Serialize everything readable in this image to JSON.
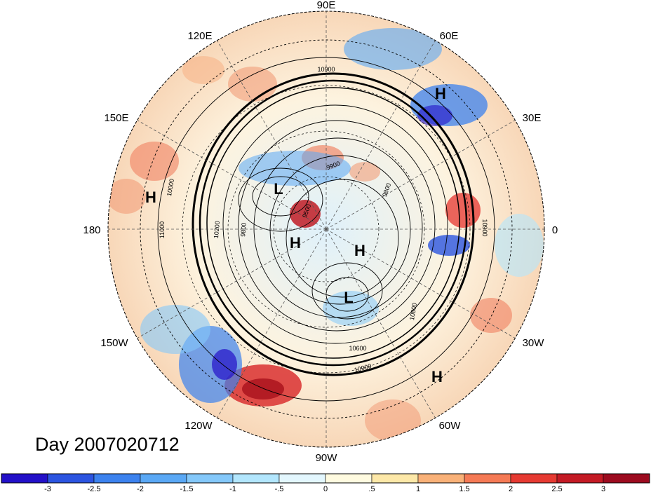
{
  "map": {
    "longitude_labels": [
      {
        "text": "90E"
      },
      {
        "text": "60E"
      },
      {
        "text": "30E"
      },
      {
        "text": "0"
      },
      {
        "text": "30W"
      },
      {
        "text": "60W"
      },
      {
        "text": "90W"
      },
      {
        "text": "120W"
      },
      {
        "text": "150W"
      },
      {
        "text": "180"
      },
      {
        "text": "150E"
      },
      {
        "text": "120E"
      }
    ],
    "pressure_centers": [
      {
        "text": "H"
      },
      {
        "text": "H"
      },
      {
        "text": "L"
      },
      {
        "text": "H"
      },
      {
        "text": "H"
      },
      {
        "text": "L"
      },
      {
        "text": "H"
      }
    ],
    "contour_labels": [
      {
        "text": "10900"
      },
      {
        "text": "9900"
      },
      {
        "text": "9800"
      },
      {
        "text": "10000"
      },
      {
        "text": "10200"
      },
      {
        "text": "9800"
      },
      {
        "text": "11000"
      },
      {
        "text": "9500"
      },
      {
        "text": "10900"
      },
      {
        "text": "10800"
      },
      {
        "text": "10600"
      },
      {
        "text": "10900"
      }
    ]
  },
  "title": {
    "day_label": "Day 2007020712"
  },
  "colorbar": {
    "tick_labels": [
      "-3",
      "-2.5",
      "-2",
      "-1.5",
      "-1",
      "-.5",
      "0",
      ".5",
      "1",
      "1.5",
      "2",
      "2.5",
      "3"
    ],
    "colors": [
      "#2310c8",
      "#2b54e0",
      "#3c82ee",
      "#5aa8f5",
      "#84c8fa",
      "#b2e6fd",
      "#e3f7fe",
      "#fffbe0",
      "#fde8a8",
      "#f9b178",
      "#f57a55",
      "#e63a32",
      "#c41a25",
      "#9c0b1f"
    ]
  },
  "colors": {
    "background": "#ffffff",
    "ocean_tint": "#e9f5fb"
  }
}
